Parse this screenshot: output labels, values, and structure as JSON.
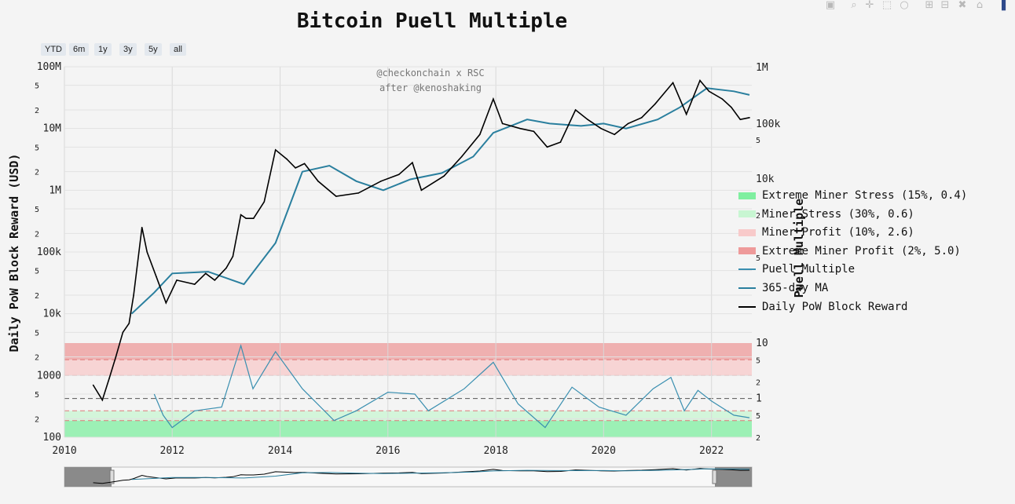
{
  "chart_data": {
    "type": "line",
    "title": "Bitcoin Puell Multiple",
    "watermark": [
      "@checkonchain x RSC",
      "after @kenoshaking"
    ],
    "y_left": {
      "label": "Daily PoW Block Reward (USD)",
      "scale": "log",
      "range": [
        100,
        100000000
      ],
      "tick_labels": [
        "100",
        "2",
        "5",
        "1000",
        "2",
        "5",
        "10k",
        "2",
        "5",
        "100k",
        "2",
        "5",
        "1M",
        "2",
        "5",
        "10M",
        "2",
        "5",
        "100M"
      ]
    },
    "y_right_upper": {
      "label": "Puell Multiple",
      "scale": "log",
      "tick_labels": [
        "100k",
        "5",
        "10k",
        "2",
        "5",
        "1M"
      ]
    },
    "y_right_lower": {
      "scale": "log",
      "tick_labels": [
        "2",
        "5",
        "1",
        "2",
        "5",
        "10"
      ]
    },
    "x": {
      "range": [
        "2010-01-01",
        "2022-10-01"
      ],
      "tick_labels": [
        "2010",
        "2012",
        "2014",
        "2016",
        "2018",
        "2020",
        "2022"
      ]
    },
    "range_buttons": [
      "YTD",
      "6m",
      "1y",
      "3y",
      "5y",
      "all"
    ],
    "bands": [
      {
        "name": "Extreme Miner Stress (15%, 0.4)",
        "color": "#7fefa0"
      },
      {
        "name": "Miner Stress (30%, 0.6)",
        "color": "#c8f6d2"
      },
      {
        "name": "Miner Profit (10%, 2.6)",
        "color": "#f8caca"
      },
      {
        "name": "Extreme Miner Profit (2%, 5.0)",
        "color": "#ee9a9a"
      }
    ],
    "series": [
      {
        "name": "Daily PoW Block Reward",
        "color": "#000000",
        "points": [
          [
            "2010-07-15",
            700
          ],
          [
            "2010-09-15",
            400
          ],
          [
            "2010-11-01",
            900
          ],
          [
            "2010-12-15",
            2000
          ],
          [
            "2011-02-01",
            5000
          ],
          [
            "2011-03-15",
            7000
          ],
          [
            "2011-04-15",
            20000
          ],
          [
            "2011-06-10",
            250000
          ],
          [
            "2011-07-15",
            100000
          ],
          [
            "2011-09-15",
            40000
          ],
          [
            "2011-11-20",
            15000
          ],
          [
            "2012-02-01",
            35000
          ],
          [
            "2012-06-01",
            30000
          ],
          [
            "2012-08-15",
            45000
          ],
          [
            "2012-10-15",
            35000
          ],
          [
            "2013-01-01",
            55000
          ],
          [
            "2013-02-15",
            85000
          ],
          [
            "2013-04-10",
            400000
          ],
          [
            "2013-05-15",
            350000
          ],
          [
            "2013-07-05",
            350000
          ],
          [
            "2013-09-15",
            650000
          ],
          [
            "2013-12-01",
            4500000
          ],
          [
            "2014-02-15",
            3200000
          ],
          [
            "2014-04-15",
            2300000
          ],
          [
            "2014-06-15",
            2700000
          ],
          [
            "2014-09-15",
            1400000
          ],
          [
            "2015-01-15",
            800000
          ],
          [
            "2015-06-15",
            900000
          ],
          [
            "2015-11-15",
            1400000
          ],
          [
            "2016-03-15",
            1800000
          ],
          [
            "2016-06-15",
            2800000
          ],
          [
            "2016-08-15",
            1000000
          ],
          [
            "2017-01-15",
            1700000
          ],
          [
            "2017-05-15",
            3500000
          ],
          [
            "2017-09-15",
            8000000
          ],
          [
            "2017-12-15",
            30000000
          ],
          [
            "2018-02-15",
            12000000
          ],
          [
            "2018-06-15",
            10000000
          ],
          [
            "2018-09-15",
            9000000
          ],
          [
            "2018-12-15",
            5000000
          ],
          [
            "2019-03-15",
            6000000
          ],
          [
            "2019-06-25",
            20000000
          ],
          [
            "2019-09-15",
            14000000
          ],
          [
            "2019-12-15",
            10000000
          ],
          [
            "2020-03-15",
            8000000
          ],
          [
            "2020-06-15",
            12000000
          ],
          [
            "2020-09-15",
            15000000
          ],
          [
            "2020-12-15",
            25000000
          ],
          [
            "2021-04-15",
            55000000
          ],
          [
            "2021-07-15",
            17000000
          ],
          [
            "2021-10-15",
            60000000
          ],
          [
            "2021-12-15",
            40000000
          ],
          [
            "2022-03-15",
            30000000
          ],
          [
            "2022-05-15",
            22000000
          ],
          [
            "2022-07-15",
            14000000
          ],
          [
            "2022-09-15",
            15000000
          ]
        ]
      },
      {
        "name": "365-day MA",
        "color": "#2a7f9e",
        "points": [
          [
            "2011-04-01",
            10000
          ],
          [
            "2011-09-01",
            22000
          ],
          [
            "2012-01-01",
            45000
          ],
          [
            "2012-09-01",
            48000
          ],
          [
            "2013-05-01",
            30000
          ],
          [
            "2013-12-01",
            140000
          ],
          [
            "2014-06-01",
            2000000
          ],
          [
            "2014-12-01",
            2500000
          ],
          [
            "2015-06-01",
            1400000
          ],
          [
            "2015-12-01",
            1000000
          ],
          [
            "2016-06-01",
            1500000
          ],
          [
            "2017-01-01",
            1900000
          ],
          [
            "2017-08-01",
            3500000
          ],
          [
            "2017-12-15",
            8500000
          ],
          [
            "2018-08-01",
            14000000
          ],
          [
            "2019-01-01",
            12000000
          ],
          [
            "2019-08-01",
            11000000
          ],
          [
            "2020-01-01",
            12000000
          ],
          [
            "2020-06-01",
            10000000
          ],
          [
            "2021-01-01",
            14000000
          ],
          [
            "2021-06-01",
            22000000
          ],
          [
            "2021-12-01",
            45000000
          ],
          [
            "2022-06-01",
            40000000
          ],
          [
            "2022-09-15",
            35000000
          ]
        ]
      },
      {
        "name": "Puell Multiple",
        "color": "#3a8fb0",
        "points": [
          [
            "2011-09-01",
            1.2
          ],
          [
            "2011-11-01",
            0.5
          ],
          [
            "2012-01-01",
            0.3
          ],
          [
            "2012-06-01",
            0.6
          ],
          [
            "2012-12-01",
            0.7
          ],
          [
            "2013-04-10",
            9.0
          ],
          [
            "2013-07-01",
            1.5
          ],
          [
            "2013-12-01",
            7.0
          ],
          [
            "2014-06-01",
            1.5
          ],
          [
            "2015-01-01",
            0.4
          ],
          [
            "2015-06-01",
            0.6
          ],
          [
            "2016-01-01",
            1.3
          ],
          [
            "2016-07-01",
            1.2
          ],
          [
            "2016-10-01",
            0.6
          ],
          [
            "2017-06-01",
            1.5
          ],
          [
            "2017-12-15",
            4.5
          ],
          [
            "2018-06-01",
            0.8
          ],
          [
            "2018-12-01",
            0.3
          ],
          [
            "2019-06-01",
            1.6
          ],
          [
            "2019-12-01",
            0.7
          ],
          [
            "2020-06-01",
            0.5
          ],
          [
            "2020-12-01",
            1.5
          ],
          [
            "2021-04-01",
            2.4
          ],
          [
            "2021-07-01",
            0.6
          ],
          [
            "2021-10-01",
            1.4
          ],
          [
            "2022-01-01",
            0.9
          ],
          [
            "2022-06-01",
            0.5
          ],
          [
            "2022-09-15",
            0.45
          ]
        ]
      }
    ],
    "reference_lines": [
      1.0
    ],
    "legend": {
      "placement": "right",
      "items": [
        "Extreme Miner Stress (15%, 0.4)",
        "Miner Stress (30%, 0.6)",
        "Miner Profit (10%, 2.6)",
        "Extreme Miner Profit (2%, 5.0)",
        "Puell Multiple",
        "365-day MA",
        "Daily PoW Block Reward"
      ]
    }
  }
}
